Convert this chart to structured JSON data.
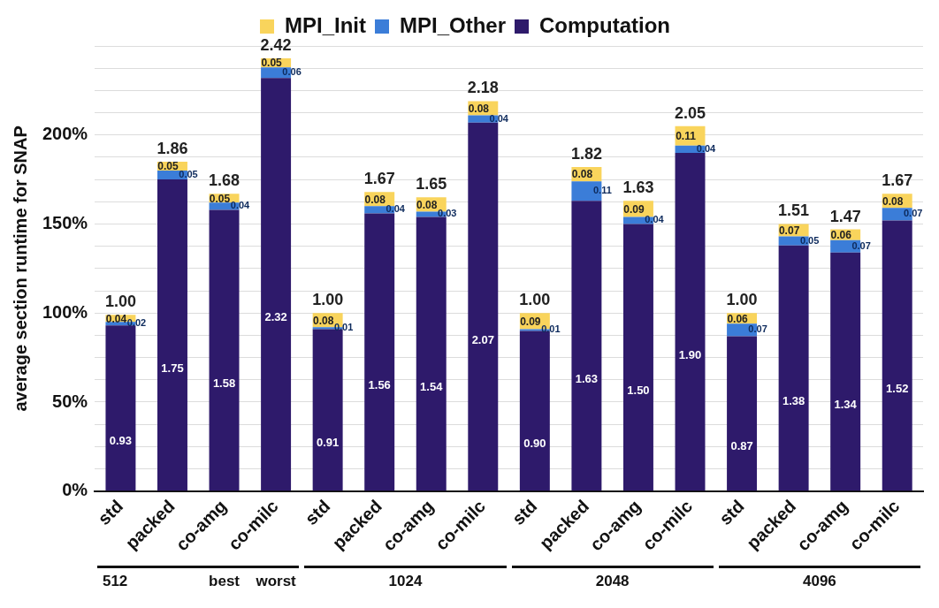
{
  "chart_data": {
    "type": "bar",
    "stacked": true,
    "ylabel": "average section runtime for SNAP",
    "categories": [
      "std",
      "packed",
      "co-amg",
      "co-milc",
      "std",
      "packed",
      "co-amg",
      "co-milc",
      "std",
      "packed",
      "co-amg",
      "co-milc",
      "std",
      "packed",
      "co-amg",
      "co-milc"
    ],
    "series": [
      {
        "name": "Computation",
        "color": "#2e1a6b",
        "values": [
          0.93,
          1.75,
          1.58,
          2.32,
          0.91,
          1.56,
          1.54,
          2.07,
          0.9,
          1.63,
          1.5,
          1.9,
          0.87,
          1.38,
          1.34,
          1.52
        ],
        "value_labels": [
          "0.93",
          "1.75",
          "1.58",
          "2.32",
          "0.91",
          "1.56",
          "1.54",
          "2.07",
          "0.90",
          "1.63",
          "1.50",
          "1.90",
          "0.87",
          "1.38",
          "1.34",
          "1.52"
        ]
      },
      {
        "name": "MPI_Other",
        "color": "#3b7dd8",
        "values": [
          0.02,
          0.05,
          0.04,
          0.06,
          0.01,
          0.04,
          0.03,
          0.04,
          0.01,
          0.11,
          0.04,
          0.04,
          0.07,
          0.05,
          0.07,
          0.07
        ],
        "value_labels": [
          "0.02",
          "0.05",
          "0.04",
          "0.06",
          "0.01",
          "0.04",
          "0.03",
          "0.04",
          "0.01",
          "0.11",
          "0.04",
          "0.04",
          "0.07",
          "0.05",
          "0.07",
          "0.07"
        ]
      },
      {
        "name": "MPI_Init",
        "color": "#f9d45c",
        "values": [
          0.04,
          0.05,
          0.05,
          0.05,
          0.08,
          0.08,
          0.08,
          0.08,
          0.09,
          0.08,
          0.09,
          0.11,
          0.06,
          0.07,
          0.06,
          0.08
        ],
        "value_labels": [
          "0.04",
          "0.05",
          "0.05",
          "0.05",
          "0.08",
          "0.08",
          "0.08",
          "0.08",
          "0.09",
          "0.08",
          "0.09",
          "0.11",
          "0.06",
          "0.07",
          "0.06",
          "0.08"
        ]
      }
    ],
    "totals": [
      "1.00",
      "1.86",
      "1.68",
      "2.42",
      "1.00",
      "1.67",
      "1.65",
      "2.18",
      "1.00",
      "1.82",
      "1.63",
      "2.05",
      "1.00",
      "1.51",
      "1.47",
      "1.67"
    ],
    "data_labels": true,
    "annotations": [
      "512",
      "best",
      "worst",
      "1024",
      "2048",
      "4096"
    ],
    "ylim": [
      0,
      2.5
    ],
    "yticks": [
      {
        "value": 0,
        "label": "0%"
      },
      {
        "value": 0.125,
        "label": null
      },
      {
        "value": 0.25,
        "label": null
      },
      {
        "value": 0.375,
        "label": null
      },
      {
        "value": 0.5,
        "label": "50%"
      },
      {
        "value": 0.625,
        "label": null
      },
      {
        "value": 0.75,
        "label": null
      },
      {
        "value": 0.875,
        "label": null
      },
      {
        "value": 1,
        "label": "100%"
      },
      {
        "value": 1.125,
        "label": null
      },
      {
        "value": 1.25,
        "label": null
      },
      {
        "value": 1.375,
        "label": null
      },
      {
        "value": 1.5,
        "label": "150%"
      },
      {
        "value": 1.625,
        "label": null
      },
      {
        "value": 1.75,
        "label": null
      },
      {
        "value": 1.875,
        "label": null
      },
      {
        "value": 2,
        "label": "200%"
      },
      {
        "value": 2.125,
        "label": null
      },
      {
        "value": 2.25,
        "label": null
      },
      {
        "value": 2.375,
        "label": null
      },
      {
        "value": 2.5,
        "label": null
      }
    ],
    "grid": "y",
    "legend": "top"
  }
}
